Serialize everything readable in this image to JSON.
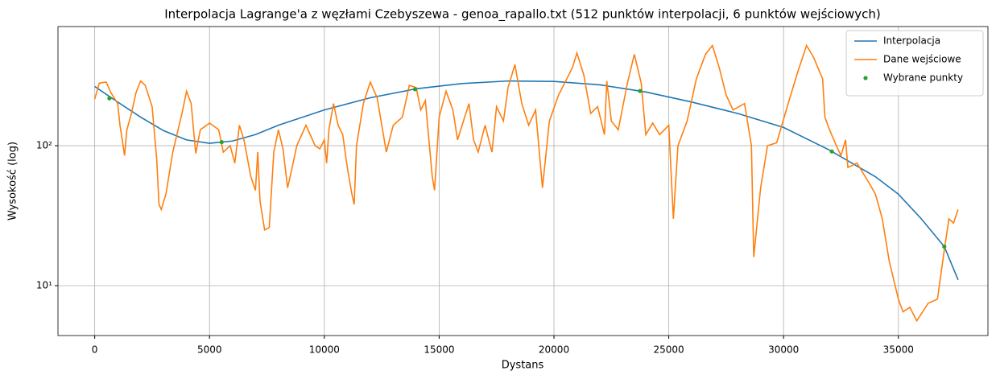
{
  "chart_data": {
    "type": "line",
    "title": "Interpolacja Lagrange'a z węzłami Czebyszewa - genoa_rapallo.txt (512 punktów interpolacji, 6 punktów wejściowych)",
    "xlabel": "Dystans",
    "ylabel": "Wysokość (log)",
    "xlim": [
      -1600,
      38900
    ],
    "ylim": [
      4.4,
      710
    ],
    "yscale": "log",
    "grid": true,
    "legend": "upper right",
    "xticks": [
      0,
      5000,
      10000,
      15000,
      20000,
      25000,
      30000,
      35000
    ],
    "yticks": [
      {
        "value": 10,
        "label": "10¹"
      },
      {
        "value": 100,
        "label": "10²"
      }
    ],
    "series": [
      {
        "name": "Interpolacja",
        "color": "#1f77b4",
        "style": "line",
        "x": [
          0,
          1000,
          2000,
          3000,
          4000,
          5000,
          6000,
          7000,
          8000,
          10000,
          12000,
          14000,
          16000,
          18000,
          20000,
          22000,
          24000,
          26000,
          28000,
          30000,
          32000,
          34000,
          35000,
          36000,
          37000,
          37600
        ],
        "values": [
          265,
          205,
          160,
          128,
          110,
          104,
          108,
          120,
          140,
          180,
          220,
          255,
          278,
          290,
          288,
          272,
          242,
          205,
          170,
          135,
          93,
          60,
          45,
          30,
          19,
          11
        ]
      },
      {
        "name": "Dane wejściowe",
        "color": "#ff7f0e",
        "style": "line",
        "x": [
          0,
          200,
          500,
          700,
          1000,
          1100,
          1200,
          1300,
          1400,
          1600,
          1800,
          2000,
          2200,
          2500,
          2700,
          2800,
          2900,
          3100,
          3400,
          3800,
          4000,
          4200,
          4400,
          4600,
          5000,
          5400,
          5600,
          5900,
          6100,
          6300,
          6500,
          6800,
          7000,
          7100,
          7200,
          7400,
          7600,
          7800,
          8000,
          8200,
          8400,
          8600,
          8800,
          9200,
          9600,
          9800,
          10000,
          10100,
          10200,
          10400,
          10600,
          10800,
          11000,
          11200,
          11300,
          11400,
          11700,
          12000,
          12300,
          12700,
          13000,
          13400,
          13700,
          14000,
          14200,
          14400,
          14700,
          14800,
          15000,
          15300,
          15600,
          15800,
          16000,
          16300,
          16500,
          16700,
          17000,
          17300,
          17500,
          17800,
          18000,
          18300,
          18600,
          18900,
          19200,
          19500,
          19800,
          20200,
          20800,
          21000,
          21300,
          21600,
          21900,
          22200,
          22300,
          22500,
          22800,
          23200,
          23500,
          23800,
          24000,
          24300,
          24600,
          25000,
          25200,
          25400,
          25800,
          26200,
          26600,
          26900,
          27200,
          27500,
          27800,
          28300,
          28600,
          28700,
          29000,
          29300,
          29700,
          30200,
          30600,
          31000,
          31300,
          31700,
          31800,
          32000,
          32300,
          32500,
          32700,
          32800,
          33200,
          33700,
          34000,
          34300,
          34600,
          35000,
          35200,
          35500,
          35800,
          36300,
          36700,
          37000,
          37200,
          37400,
          37600
        ],
        "values": [
          215,
          280,
          285,
          240,
          200,
          140,
          110,
          85,
          130,
          170,
          240,
          290,
          270,
          190,
          80,
          38,
          35,
          45,
          90,
          170,
          245,
          200,
          88,
          130,
          145,
          130,
          90,
          100,
          75,
          140,
          110,
          60,
          48,
          90,
          40,
          25,
          26,
          90,
          130,
          95,
          50,
          70,
          100,
          140,
          100,
          95,
          110,
          75,
          130,
          200,
          140,
          120,
          70,
          45,
          38,
          100,
          200,
          285,
          220,
          90,
          140,
          160,
          270,
          260,
          180,
          210,
          60,
          48,
          160,
          245,
          180,
          110,
          140,
          200,
          110,
          90,
          140,
          90,
          190,
          150,
          260,
          380,
          200,
          140,
          180,
          50,
          150,
          230,
          360,
          460,
          320,
          170,
          190,
          120,
          290,
          150,
          130,
          280,
          450,
          280,
          120,
          145,
          120,
          140,
          30,
          100,
          150,
          300,
          450,
          520,
          360,
          230,
          180,
          200,
          100,
          16,
          50,
          100,
          105,
          200,
          330,
          520,
          430,
          300,
          160,
          130,
          100,
          85,
          110,
          70,
          75,
          55,
          45,
          30,
          15,
          8,
          6.5,
          7,
          5.6,
          7.5,
          8,
          18,
          30,
          28,
          35
        ]
      },
      {
        "name": "Wybrane punkty",
        "color": "#2ca02c",
        "style": "points",
        "x": [
          640,
          5530,
          13950,
          23750,
          32100,
          37000
        ],
        "values": [
          218,
          106,
          253,
          246,
          91,
          19
        ]
      }
    ]
  }
}
